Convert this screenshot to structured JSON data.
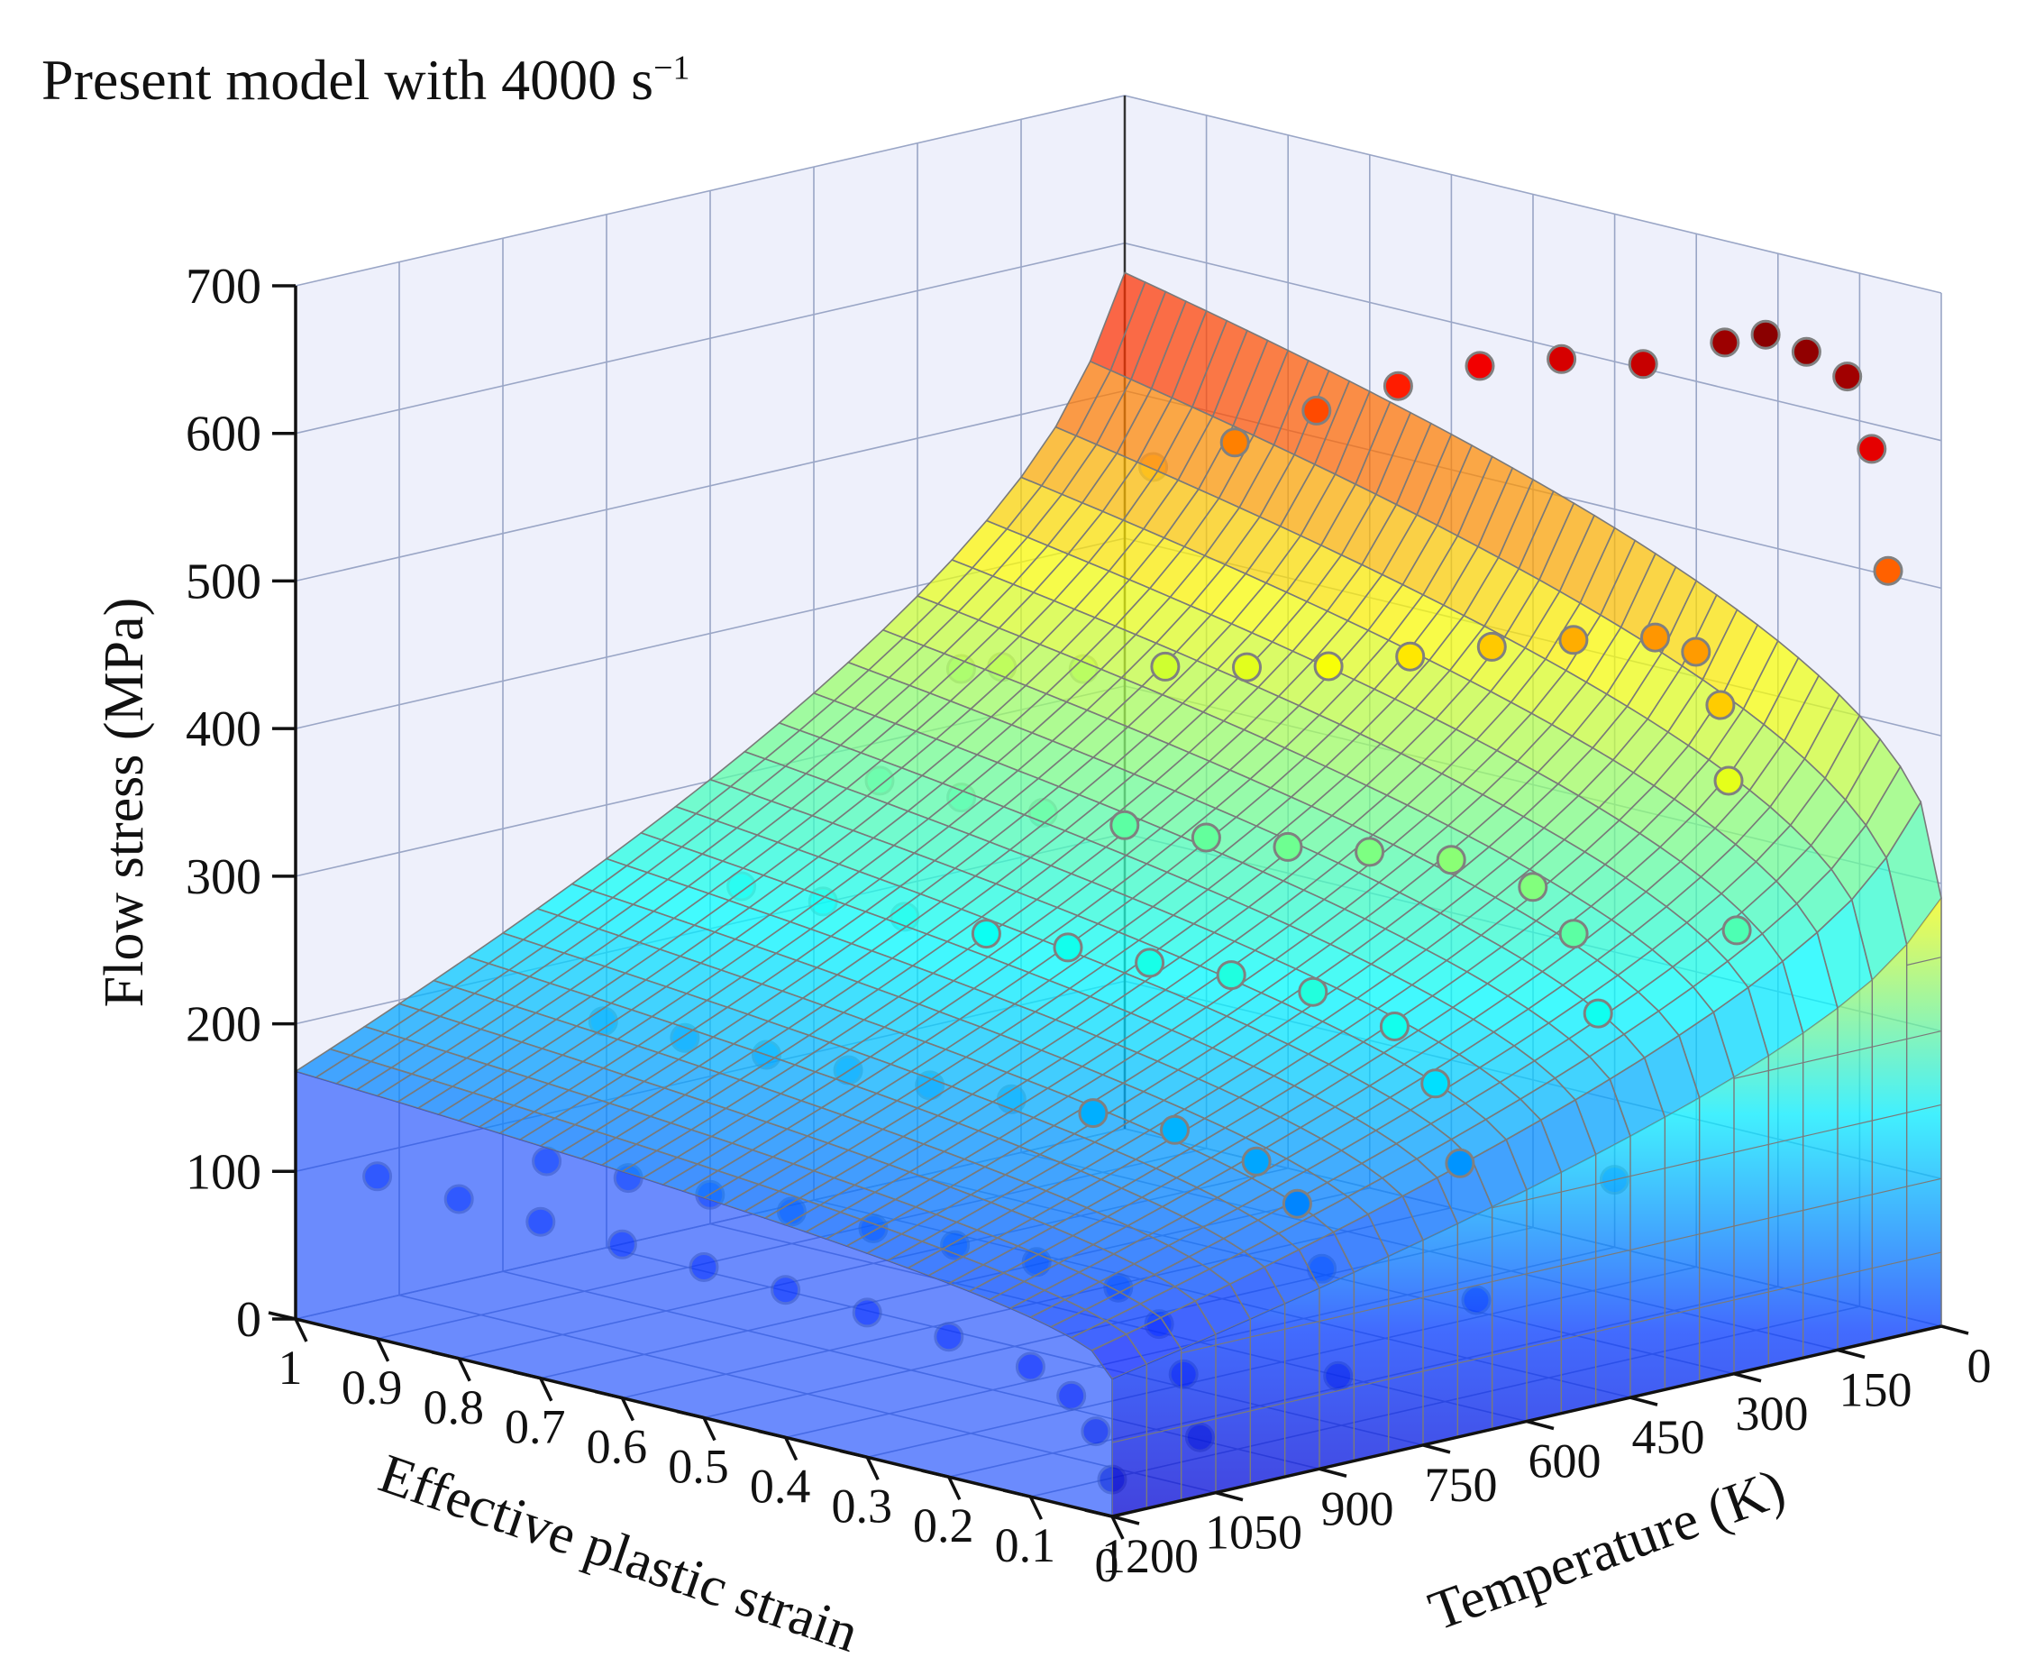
{
  "chart_data": {
    "type": "surface3d-scatter",
    "title": {
      "main": "Present model with 4000 s",
      "superscript": "−1"
    },
    "zlabel": "Flow stress (MPa)",
    "xlabel": "Effective plastic strain",
    "ylabel": "Temperature (K)",
    "z_ticks": [
      "0",
      "100",
      "200",
      "300",
      "400",
      "500",
      "600",
      "700"
    ],
    "x_ticks": [
      "1",
      "0.9",
      "0.8",
      "0.7",
      "0.6",
      "0.5",
      "0.4",
      "0.3",
      "0.2",
      "0.1",
      "0"
    ],
    "y_ticks": [
      "1200",
      "1050",
      "900",
      "750",
      "600",
      "450",
      "300",
      "150",
      "0"
    ],
    "xlim": [
      0,
      1
    ],
    "ylim": [
      0,
      1200
    ],
    "zlim": [
      0,
      700
    ],
    "grid": true,
    "colormap": "jet",
    "surface": {
      "description_model": "modified Johnson-Cook type",
      "grid_strain_steps": 40,
      "grid_temperature_steps": 24
    },
    "series": [
      {
        "temperature": 77,
        "points": [
          [
            0.0,
            520
          ],
          [
            0.02,
            600
          ],
          [
            0.05,
            645
          ],
          [
            0.1,
            655
          ],
          [
            0.15,
            660
          ],
          [
            0.2,
            648
          ],
          [
            0.3,
            620
          ],
          [
            0.4,
            610
          ],
          [
            0.5,
            592
          ],
          [
            0.6,
            565
          ],
          [
            0.7,
            535
          ],
          [
            0.8,
            500
          ],
          [
            0.9,
            470
          ]
        ]
      },
      {
        "temperature": 296,
        "points": [
          [
            0.0,
            300
          ],
          [
            0.01,
            400
          ],
          [
            0.02,
            450
          ],
          [
            0.05,
            482
          ],
          [
            0.1,
            485
          ],
          [
            0.2,
            470
          ],
          [
            0.3,
            452
          ],
          [
            0.4,
            432
          ],
          [
            0.5,
            412
          ],
          [
            0.6,
            398
          ],
          [
            0.7,
            385
          ],
          [
            0.8,
            370
          ],
          [
            0.9,
            358
          ],
          [
            0.95,
            350
          ]
        ]
      },
      {
        "temperature": 473,
        "points": [
          [
            0.0,
            150
          ],
          [
            0.02,
            260
          ],
          [
            0.05,
            310
          ],
          [
            0.1,
            335
          ],
          [
            0.2,
            340
          ],
          [
            0.3,
            332
          ],
          [
            0.4,
            322
          ],
          [
            0.5,
            315
          ],
          [
            0.6,
            310
          ],
          [
            0.7,
            305
          ],
          [
            0.8,
            302
          ],
          [
            0.9,
            300
          ]
        ]
      },
      {
        "temperature": 673,
        "points": [
          [
            0.0,
            90
          ],
          [
            0.02,
            180
          ],
          [
            0.05,
            230
          ],
          [
            0.1,
            262
          ],
          [
            0.2,
            272
          ],
          [
            0.3,
            270
          ],
          [
            0.4,
            265
          ],
          [
            0.5,
            262
          ],
          [
            0.6,
            258
          ],
          [
            0.7,
            256
          ],
          [
            0.8,
            253
          ],
          [
            0.9,
            250
          ]
        ]
      },
      {
        "temperature": 873,
        "points": [
          [
            0.0,
            60
          ],
          [
            0.02,
            130
          ],
          [
            0.05,
            170
          ],
          [
            0.1,
            192
          ],
          [
            0.2,
            200
          ],
          [
            0.3,
            198
          ],
          [
            0.4,
            194
          ],
          [
            0.5,
            190
          ],
          [
            0.6,
            187
          ],
          [
            0.7,
            184
          ],
          [
            0.8,
            182
          ],
          [
            0.9,
            180
          ]
        ]
      },
      {
        "temperature": 1073,
        "points": [
          [
            0.0,
            40
          ],
          [
            0.02,
            80
          ],
          [
            0.05,
            110
          ],
          [
            0.1,
            128
          ],
          [
            0.2,
            132
          ],
          [
            0.3,
            130
          ],
          [
            0.4,
            128
          ],
          [
            0.5,
            126
          ],
          [
            0.6,
            124
          ],
          [
            0.7,
            122
          ],
          [
            0.8,
            120
          ]
        ]
      },
      {
        "temperature": 1200,
        "points": [
          [
            0.0,
            25
          ],
          [
            0.02,
            55
          ],
          [
            0.05,
            75
          ],
          [
            0.1,
            88
          ],
          [
            0.2,
            95
          ],
          [
            0.3,
            98
          ],
          [
            0.4,
            100
          ],
          [
            0.5,
            102
          ],
          [
            0.6,
            104
          ],
          [
            0.7,
            106
          ],
          [
            0.8,
            108
          ],
          [
            0.9,
            110
          ]
        ]
      }
    ]
  }
}
